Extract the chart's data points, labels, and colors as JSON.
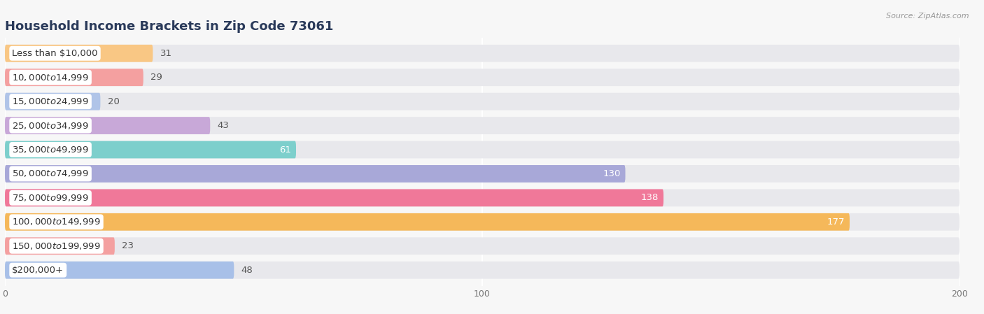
{
  "title": "Household Income Brackets in Zip Code 73061",
  "source": "Source: ZipAtlas.com",
  "categories": [
    "Less than $10,000",
    "$10,000 to $14,999",
    "$15,000 to $24,999",
    "$25,000 to $34,999",
    "$35,000 to $49,999",
    "$50,000 to $74,999",
    "$75,000 to $99,999",
    "$100,000 to $149,999",
    "$150,000 to $199,999",
    "$200,000+"
  ],
  "values": [
    31,
    29,
    20,
    43,
    61,
    130,
    138,
    177,
    23,
    48
  ],
  "bar_colors": [
    "#F9C784",
    "#F4A0A0",
    "#B0C4E8",
    "#C8A8D8",
    "#7DCFCC",
    "#A8A8D8",
    "#F07899",
    "#F5B85A",
    "#F4A0A0",
    "#A8C0E8"
  ],
  "xlim": [
    0,
    200
  ],
  "xticks": [
    0,
    100,
    200
  ],
  "title_fontsize": 13,
  "label_fontsize": 9.5,
  "value_fontsize": 9.5,
  "bar_height": 0.72,
  "bg_bar_color": "#e8e8ec",
  "label_bg_color": "#ffffff",
  "fig_bg": "#f7f7f7"
}
